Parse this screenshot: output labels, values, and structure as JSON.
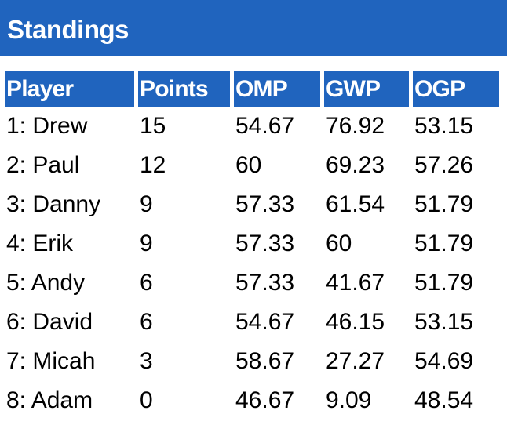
{
  "header": {
    "title": "Standings"
  },
  "colors": {
    "header_blue": "#2064be",
    "header_text": "#ffffff",
    "body_text": "#000000"
  },
  "table": {
    "columns": [
      "Player",
      "Points",
      "OMP",
      "GWP",
      "OGP"
    ],
    "rows": [
      [
        "1: Drew",
        "15",
        "54.67",
        "76.92",
        "53.15"
      ],
      [
        "2: Paul",
        "12",
        "60",
        "69.23",
        "57.26"
      ],
      [
        "3: Danny",
        "9",
        "57.33",
        "61.54",
        "51.79"
      ],
      [
        "4: Erik",
        "9",
        "57.33",
        "60",
        "51.79"
      ],
      [
        "5: Andy",
        "6",
        "57.33",
        "41.67",
        "51.79"
      ],
      [
        "6: David",
        "6",
        "54.67",
        "46.15",
        "53.15"
      ],
      [
        "7: Micah",
        "3",
        "58.67",
        "27.27",
        "54.69"
      ],
      [
        "8: Adam",
        "0",
        "46.67",
        "9.09",
        "48.54"
      ]
    ]
  }
}
